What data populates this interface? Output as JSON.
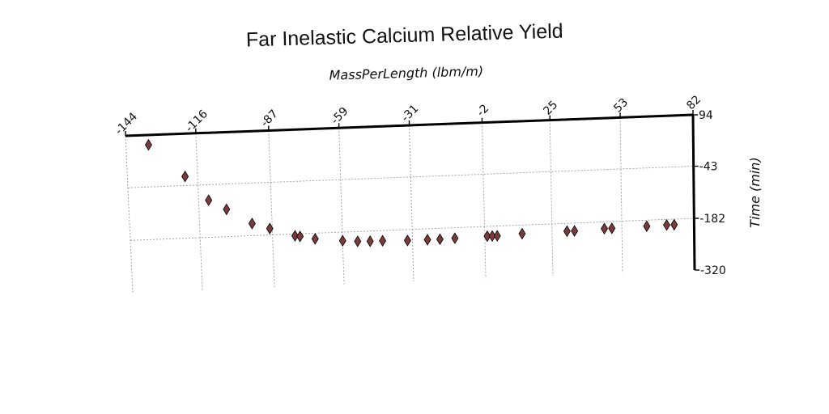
{
  "chart_data": {
    "type": "scatter",
    "title": "Far Inelastic Calcium Relative Yield",
    "xlabel": "MassPerLength (lbm/m)",
    "ylabel": "Time (min)",
    "x_ticks": [
      "-144",
      "-116",
      "-87",
      "-59",
      "-31",
      "-2",
      "25",
      "53",
      "82"
    ],
    "y_ticks": [
      "94",
      "-43",
      "-182",
      "-320"
    ],
    "x_tick_values": [
      -144,
      -116,
      -87,
      -59,
      -31,
      -2,
      25,
      53,
      82
    ],
    "y_tick_values": [
      94,
      -43,
      -182,
      -320
    ],
    "xlim": [
      -144,
      82
    ],
    "ylim": [
      -320,
      94
    ],
    "x_axis_position": "top",
    "y_axis_position": "right",
    "grid": true,
    "marker": "diamond",
    "marker_color": "#7a3b3b",
    "series": [
      {
        "x": [
          -135,
          -121,
          -112,
          -105,
          -95,
          -88,
          -78,
          -76,
          -70,
          -59,
          -53,
          -48,
          -43,
          -33,
          -25,
          -20,
          -14,
          -1,
          1,
          3,
          13,
          31,
          34,
          46,
          49,
          63,
          71,
          74
        ],
        "y": [
          68,
          -19,
          -84,
          -110,
          -150,
          -165,
          -187,
          -189,
          -197,
          -205,
          -208,
          -209,
          -209,
          -211,
          -211,
          -211,
          -210,
          -208,
          -208,
          -208,
          -205,
          -203,
          -203,
          -200,
          -200,
          -198,
          -197,
          -197
        ]
      }
    ]
  }
}
